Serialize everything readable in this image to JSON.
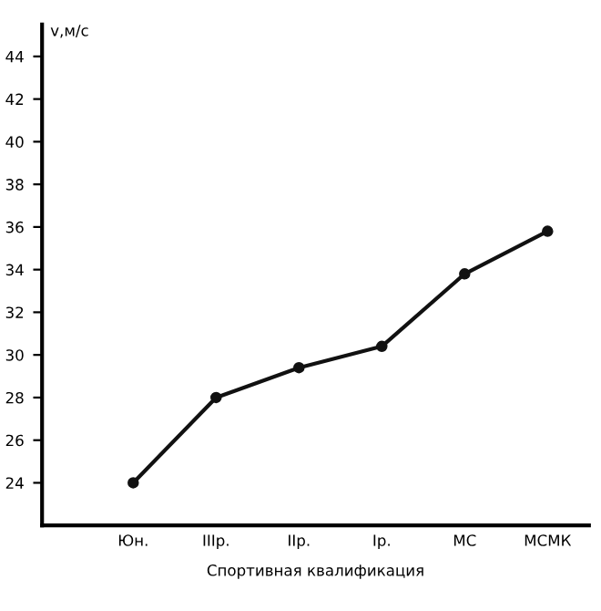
{
  "chart_data": {
    "type": "line",
    "ylabel": "v,м/с",
    "xlabel": "Спортивная квалификация",
    "categories": [
      "Юн.",
      "IIIр.",
      "IIр.",
      "Iр.",
      "МС",
      "МСМК"
    ],
    "series": [
      {
        "color": "#111111",
        "values": [
          24,
          28,
          29.4,
          30.4,
          33.8,
          35.8
        ]
      }
    ],
    "ylim": [
      22,
      45.5
    ],
    "yticks": [
      24,
      26,
      28,
      30,
      32,
      34,
      36,
      38,
      40,
      42,
      44
    ],
    "marker": "circle",
    "line_style": "solid",
    "grid": false
  }
}
